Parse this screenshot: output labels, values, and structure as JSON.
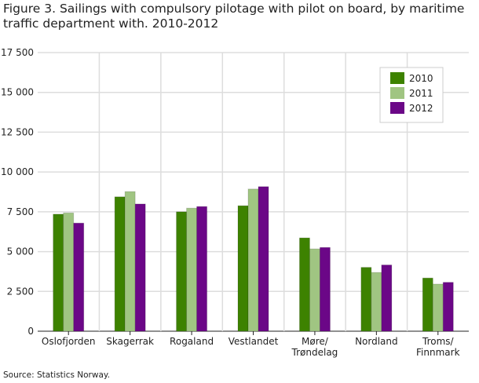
{
  "chart_data": {
    "type": "bar",
    "title": "Figure 3. Sailings with compulsory pilotage with pilot on board, by maritime traffic department with. 2010-2012",
    "categories": [
      [
        "Oslofjorden"
      ],
      [
        "Skagerrak"
      ],
      [
        "Rogaland"
      ],
      [
        "Vestlandet"
      ],
      [
        "Møre/",
        "Trøndelag"
      ],
      [
        "Nordland"
      ],
      [
        "Troms/",
        "Finnmark"
      ]
    ],
    "series": [
      {
        "name": "2010",
        "color": "#3d8200",
        "values": [
          7350,
          8440,
          7500,
          7880,
          5860,
          4010,
          3340
        ]
      },
      {
        "name": "2011",
        "color": "#a0c582",
        "values": [
          7430,
          8770,
          7730,
          8930,
          5170,
          3690,
          2960
        ]
      },
      {
        "name": "2012",
        "color": "#6b0787",
        "values": [
          6790,
          7990,
          7830,
          9080,
          5260,
          4160,
          3070
        ]
      }
    ],
    "ylim": [
      0,
      17500
    ],
    "yticks": [
      0,
      2500,
      5000,
      7500,
      10000,
      12500,
      15000,
      17500
    ],
    "ytick_labels": [
      "0",
      "2 500",
      "5 000",
      "7 500",
      "10 000",
      "12 500",
      "15 000",
      "17 500"
    ],
    "grid": true,
    "legend": "top-right",
    "xlabel": "",
    "ylabel": ""
  },
  "source": "Source: Statistics Norway."
}
